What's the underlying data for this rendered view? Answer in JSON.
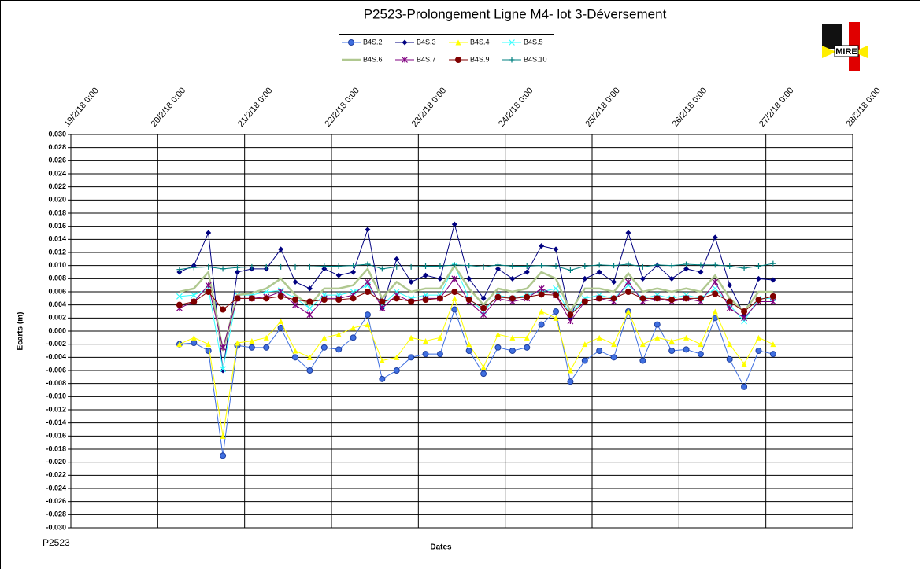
{
  "logo": "MIRE",
  "footer": "P2523",
  "chart_data": {
    "type": "line",
    "title": "P2523-Prolongement  Ligne  M4- lot 3-Déversement",
    "y_label": "Ecarts (m)",
    "x_label": "Dates",
    "grid": true,
    "xlim": [
      "2018-02-19T00:00",
      "2018-02-28T00:00"
    ],
    "xticks": [
      {
        "value": "2018-02-19T00:00",
        "label": "19/2/18 0:00"
      },
      {
        "value": "2018-02-20T00:00",
        "label": "20/2/18 0:00"
      },
      {
        "value": "2018-02-21T00:00",
        "label": "21/2/18 0:00"
      },
      {
        "value": "2018-02-22T00:00",
        "label": "22/2/18 0:00"
      },
      {
        "value": "2018-02-23T00:00",
        "label": "23/2/18 0:00"
      },
      {
        "value": "2018-02-24T00:00",
        "label": "24/2/18 0:00"
      },
      {
        "value": "2018-02-25T00:00",
        "label": "25/2/18 0:00"
      },
      {
        "value": "2018-02-26T00:00",
        "label": "26/2/18 0:00"
      },
      {
        "value": "2018-02-27T00:00",
        "label": "27/2/18 0:00"
      },
      {
        "value": "2018-02-28T00:00",
        "label": "28/2/18 0:00"
      }
    ],
    "ylim": [
      -0.03,
      0.03
    ],
    "yticks": [
      {
        "value": 0.03,
        "label": "0.030"
      },
      {
        "value": 0.028,
        "label": "0.028"
      },
      {
        "value": 0.026,
        "label": "0.026"
      },
      {
        "value": 0.024,
        "label": "0.024"
      },
      {
        "value": 0.022,
        "label": "0.022"
      },
      {
        "value": 0.02,
        "label": "0.020"
      },
      {
        "value": 0.018,
        "label": "0.018"
      },
      {
        "value": 0.016,
        "label": "0.016"
      },
      {
        "value": 0.014,
        "label": "0.014"
      },
      {
        "value": 0.012,
        "label": "0.012"
      },
      {
        "value": 0.01,
        "label": "0.010"
      },
      {
        "value": 0.008,
        "label": "0.008"
      },
      {
        "value": 0.006,
        "label": "0.006"
      },
      {
        "value": 0.004,
        "label": "0.004"
      },
      {
        "value": 0.002,
        "label": "0.002"
      },
      {
        "value": 0,
        "label": "0.000"
      },
      {
        "value": -0.002,
        "label": "-0.002"
      },
      {
        "value": -0.004,
        "label": "-0.004"
      },
      {
        "value": -0.006,
        "label": "-0.006"
      },
      {
        "value": -0.008,
        "label": "-0.008"
      },
      {
        "value": -0.01,
        "label": "-0.010"
      },
      {
        "value": -0.012,
        "label": "-0.012"
      },
      {
        "value": -0.014,
        "label": "-0.014"
      },
      {
        "value": -0.016,
        "label": "-0.016"
      },
      {
        "value": -0.018,
        "label": "-0.018"
      },
      {
        "value": -0.02,
        "label": "-0.020"
      },
      {
        "value": -0.022,
        "label": "-0.022"
      },
      {
        "value": -0.024,
        "label": "-0.024"
      },
      {
        "value": -0.026,
        "label": "-0.026"
      },
      {
        "value": -0.028,
        "label": "-0.028"
      },
      {
        "value": -0.03,
        "label": "-0.030"
      }
    ],
    "x": [
      "2018-02-20T06:00",
      "2018-02-20T10:00",
      "2018-02-20T14:00",
      "2018-02-20T18:00",
      "2018-02-20T22:00",
      "2018-02-21T02:00",
      "2018-02-21T06:00",
      "2018-02-21T10:00",
      "2018-02-21T14:00",
      "2018-02-21T18:00",
      "2018-02-21T22:00",
      "2018-02-22T02:00",
      "2018-02-22T06:00",
      "2018-02-22T10:00",
      "2018-02-22T14:00",
      "2018-02-22T18:00",
      "2018-02-22T22:00",
      "2018-02-23T02:00",
      "2018-02-23T06:00",
      "2018-02-23T10:00",
      "2018-02-23T14:00",
      "2018-02-23T18:00",
      "2018-02-23T22:00",
      "2018-02-24T02:00",
      "2018-02-24T06:00",
      "2018-02-24T10:00",
      "2018-02-24T14:00",
      "2018-02-24T18:00",
      "2018-02-24T22:00",
      "2018-02-25T02:00",
      "2018-02-25T06:00",
      "2018-02-25T10:00",
      "2018-02-25T14:00",
      "2018-02-25T18:00",
      "2018-02-25T22:00",
      "2018-02-26T02:00",
      "2018-02-26T06:00",
      "2018-02-26T10:00",
      "2018-02-26T14:00",
      "2018-02-26T18:00",
      "2018-02-26T22:00",
      "2018-02-27T02:00"
    ],
    "series": [
      {
        "name": "B4S.2",
        "color": "#3f6fe0",
        "marker": "circle",
        "values": [
          -0.002,
          -0.0018,
          -0.003,
          -0.019,
          -0.0022,
          -0.0025,
          -0.0025,
          0.0005,
          -0.004,
          -0.006,
          -0.0025,
          -0.0028,
          -0.001,
          0.0025,
          -0.0073,
          -0.006,
          -0.004,
          -0.0035,
          -0.0035,
          0.0033,
          -0.003,
          -0.0065,
          -0.0025,
          -0.003,
          -0.0025,
          0.001,
          0.003,
          -0.0077,
          -0.0045,
          -0.003,
          -0.004,
          0.003,
          -0.0045,
          0.001,
          -0.003,
          -0.0028,
          -0.0035,
          0.002,
          -0.0043,
          -0.0085,
          -0.003,
          -0.0035
        ]
      },
      {
        "name": "B4S.3",
        "color": "#000080",
        "marker": "diamond",
        "values": [
          0.009,
          0.01,
          0.015,
          -0.006,
          0.009,
          0.0095,
          0.0095,
          0.0125,
          0.0075,
          0.0065,
          0.0095,
          0.0085,
          0.009,
          0.0155,
          0.0035,
          0.011,
          0.0075,
          0.0085,
          0.008,
          0.0163,
          0.008,
          0.005,
          0.0095,
          0.008,
          0.009,
          0.013,
          0.0125,
          0.002,
          0.008,
          0.009,
          0.0075,
          0.015,
          0.008,
          0.01,
          0.008,
          0.0095,
          0.009,
          0.0143,
          0.007,
          0.0025,
          0.008,
          0.0078
        ]
      },
      {
        "name": "B4S.4",
        "color": "#ffff00",
        "marker": "triangle",
        "values": [
          -0.002,
          -0.001,
          -0.002,
          -0.016,
          -0.0018,
          -0.0015,
          -0.001,
          0.0015,
          -0.003,
          -0.004,
          -0.001,
          -0.0005,
          0.0005,
          0.001,
          -0.0045,
          -0.004,
          -0.001,
          -0.0015,
          -0.001,
          0.005,
          -0.002,
          -0.0055,
          -0.0005,
          -0.001,
          -0.001,
          0.003,
          0.002,
          -0.006,
          -0.002,
          -0.001,
          -0.002,
          0.003,
          -0.002,
          -0.001,
          -0.0015,
          -0.001,
          -0.002,
          0.003,
          -0.002,
          -0.005,
          -0.001,
          -0.002
        ]
      },
      {
        "name": "B4S.5",
        "color": "#33ffff",
        "marker": "x",
        "values": [
          0.0053,
          0.0055,
          0.0065,
          -0.0058,
          0.0055,
          0.0055,
          0.006,
          0.0062,
          0.005,
          0.0035,
          0.0055,
          0.0055,
          0.006,
          0.007,
          0.004,
          0.006,
          0.005,
          0.0055,
          0.0055,
          0.01,
          0.005,
          0.003,
          0.0055,
          0.005,
          0.0055,
          0.006,
          0.0065,
          0.0025,
          0.005,
          0.0055,
          0.005,
          0.007,
          0.005,
          0.0055,
          0.005,
          0.0055,
          0.005,
          0.0065,
          0.004,
          0.0015,
          0.005,
          0.005
        ]
      },
      {
        "name": "B4S.6",
        "color": "#b0c890",
        "marker": "none",
        "values": [
          0.006,
          0.0065,
          0.009,
          -0.003,
          0.0055,
          0.0058,
          0.0065,
          0.008,
          0.0055,
          0.004,
          0.0065,
          0.0065,
          0.007,
          0.0095,
          0.005,
          0.0075,
          0.006,
          0.0065,
          0.0065,
          0.01,
          0.0065,
          0.004,
          0.0065,
          0.006,
          0.0065,
          0.009,
          0.008,
          0.003,
          0.0065,
          0.0065,
          0.006,
          0.0088,
          0.006,
          0.0065,
          0.006,
          0.0065,
          0.006,
          0.0085,
          0.005,
          0.003,
          0.006,
          0.006
        ]
      },
      {
        "name": "B4S.7",
        "color": "#800080",
        "marker": "star",
        "values": [
          0.0035,
          0.0045,
          0.007,
          -0.0025,
          0.005,
          0.005,
          0.0052,
          0.006,
          0.004,
          0.0025,
          0.005,
          0.005,
          0.0055,
          0.0075,
          0.0035,
          0.0055,
          0.0045,
          0.005,
          0.005,
          0.008,
          0.0045,
          0.0025,
          0.005,
          0.0045,
          0.005,
          0.0065,
          0.0055,
          0.0015,
          0.0045,
          0.005,
          0.0045,
          0.0075,
          0.0045,
          0.005,
          0.0045,
          0.005,
          0.0045,
          0.0075,
          0.0035,
          0.002,
          0.0045,
          0.0045
        ]
      },
      {
        "name": "B4S.9",
        "color": "#800000",
        "marker": "circle",
        "values": [
          0.004,
          0.0045,
          0.006,
          0.0033,
          0.005,
          0.005,
          0.005,
          0.0053,
          0.0048,
          0.0045,
          0.0048,
          0.0048,
          0.005,
          0.006,
          0.0045,
          0.005,
          0.0045,
          0.0048,
          0.005,
          0.006,
          0.0048,
          0.0035,
          0.0052,
          0.005,
          0.0052,
          0.0056,
          0.0055,
          0.0025,
          0.0045,
          0.005,
          0.005,
          0.006,
          0.005,
          0.005,
          0.0048,
          0.005,
          0.005,
          0.0057,
          0.0045,
          0.003,
          0.0048,
          0.0053
        ]
      },
      {
        "name": "B4S.10",
        "color": "#008080",
        "marker": "plus",
        "values": [
          0.0094,
          0.0097,
          0.0098,
          0.0095,
          0.0097,
          0.0098,
          0.0098,
          0.0098,
          0.0098,
          0.0098,
          0.0099,
          0.0099,
          0.01,
          0.0102,
          0.0095,
          0.0098,
          0.0098,
          0.0099,
          0.0099,
          0.0101,
          0.01,
          0.0098,
          0.0101,
          0.0099,
          0.0099,
          0.01,
          0.0099,
          0.0093,
          0.0099,
          0.0101,
          0.01,
          0.0102,
          0.0098,
          0.0101,
          0.01,
          0.0102,
          0.0101,
          0.0101,
          0.0099,
          0.0096,
          0.0099,
          0.0103
        ]
      }
    ]
  }
}
